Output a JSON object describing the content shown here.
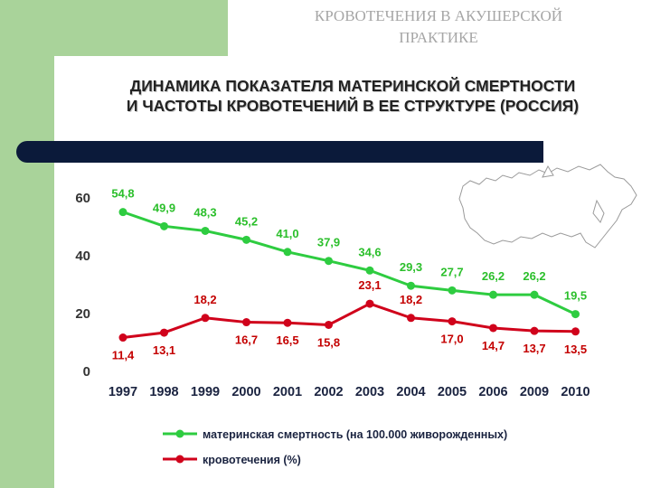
{
  "slide": {
    "title_line1": "КРОВОТЕЧЕНИЯ В АКУШЕРСКОЙ",
    "title_line2": "ПРАКТИКЕ",
    "subtitle_line1": "ДИНАМИКА ПОКАЗАТЕЛЯ МАТЕРИНСКОЙ СМЕРТНОСТИ",
    "subtitle_line2": "И ЧАСТОТЫ КРОВОТЕЧЕНИЙ В ЕЕ СТРУКТУРЕ (РОССИЯ)"
  },
  "colors": {
    "green_bg": "#a9d39a",
    "navy_bar": "#0b1a3a",
    "series_green": "#2ecc40",
    "series_red": "#d0021b",
    "label_green": "#2bbf2b",
    "label_red": "#c40000"
  },
  "chart_data": {
    "type": "line",
    "categories": [
      "1997",
      "1998",
      "1999",
      "2000",
      "2001",
      "2002",
      "2003",
      "2004",
      "2005",
      "2006",
      "2009",
      "2010"
    ],
    "ylim": [
      0,
      60
    ],
    "yticks": [
      "0",
      "20",
      "40",
      "60"
    ],
    "series": [
      {
        "name": "материнская смертность (на 100.000 живорожденных)",
        "color": "#2ecc40",
        "values": [
          54.8,
          49.9,
          48.3,
          45.2,
          41.0,
          37.9,
          34.6,
          29.3,
          27.7,
          26.2,
          26.2,
          19.5
        ],
        "labels": [
          "54,8",
          "49,9",
          "48,3",
          "45,2",
          "41,0",
          "37,9",
          "34,6",
          "29,3",
          "27,7",
          "26,2",
          "26,2",
          "19,5"
        ]
      },
      {
        "name": "кровотечения (%)",
        "color": "#d0021b",
        "values": [
          11.4,
          13.1,
          18.2,
          16.7,
          16.5,
          15.8,
          23.1,
          18.2,
          17.0,
          14.7,
          13.7,
          13.5
        ],
        "labels": [
          "11,4",
          "13,1",
          "18,2",
          "16,7",
          "16,5",
          "15,8",
          "23,1",
          "18,2",
          "17,0",
          "14,7",
          "13,7",
          "13,5"
        ]
      }
    ]
  }
}
